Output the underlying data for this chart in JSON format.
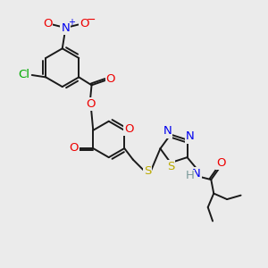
{
  "background_color": "#ebebeb",
  "bond_color": "#1a1a1a",
  "bond_width": 1.4,
  "dbo": 0.07,
  "colors": {
    "Cl": "#00aa00",
    "N": "#0000ee",
    "O": "#ee0000",
    "S": "#bbaa00",
    "H": "#7a9a9a",
    "C": "#1a1a1a"
  },
  "fontsize": 9.5
}
